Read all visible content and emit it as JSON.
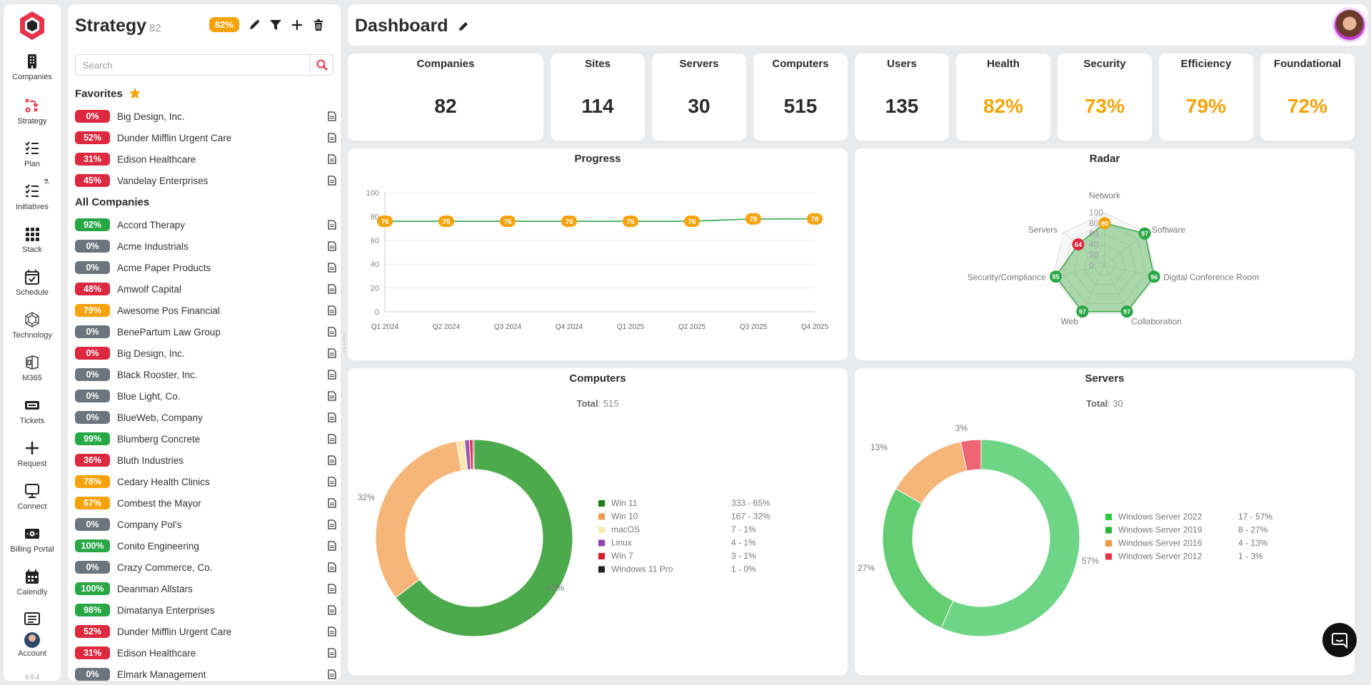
{
  "nav": {
    "items": [
      {
        "label": "Companies",
        "icon": "building-icon"
      },
      {
        "label": "Strategy",
        "icon": "strategy-icon"
      },
      {
        "label": "Plan",
        "icon": "checklist-icon"
      },
      {
        "label": "Initiatives",
        "icon": "initiatives-icon"
      },
      {
        "label": "Stack",
        "icon": "grid-icon"
      },
      {
        "label": "Schedule",
        "icon": "calendar-check-icon"
      },
      {
        "label": "Technology",
        "icon": "cubes-icon"
      },
      {
        "label": "M365",
        "icon": "office-icon"
      },
      {
        "label": "Tickets",
        "icon": "ticket-icon"
      },
      {
        "label": "Request",
        "icon": "plus-icon"
      },
      {
        "label": "Connect",
        "icon": "monitor-icon"
      },
      {
        "label": "Billing Portal",
        "icon": "money-icon"
      },
      {
        "label": "Calendly",
        "icon": "calendar-icon"
      },
      {
        "label": "Account",
        "icon": "user-avatar-icon"
      }
    ],
    "version": "9.6.4",
    "active_color": "#e8334a"
  },
  "strategy_panel": {
    "title": "Strategy",
    "count": "82",
    "overall_pct": "82%",
    "search_placeholder": "Search",
    "favorites_heading": "Favorites",
    "all_heading": "All Companies",
    "favorites": [
      {
        "pct": "0%",
        "color": "red",
        "name": "Big Design, Inc."
      },
      {
        "pct": "52%",
        "color": "red",
        "name": "Dunder Mifflin Urgent Care"
      },
      {
        "pct": "31%",
        "color": "red",
        "name": "Edison Healthcare"
      },
      {
        "pct": "45%",
        "color": "red",
        "name": "Vandelay Enterprises"
      }
    ],
    "companies": [
      {
        "pct": "92%",
        "color": "green",
        "name": "Accord Therapy"
      },
      {
        "pct": "0%",
        "color": "gray",
        "name": "Acme Industrials"
      },
      {
        "pct": "0%",
        "color": "gray",
        "name": "Acme Paper Products"
      },
      {
        "pct": "48%",
        "color": "red",
        "name": "Amwolf Capital"
      },
      {
        "pct": "79%",
        "color": "yellow",
        "name": "Awesome Pos Financial"
      },
      {
        "pct": "0%",
        "color": "gray",
        "name": "BenePartum Law Group"
      },
      {
        "pct": "0%",
        "color": "red",
        "name": "Big Design, Inc."
      },
      {
        "pct": "0%",
        "color": "gray",
        "name": "Black Rooster, Inc."
      },
      {
        "pct": "0%",
        "color": "gray",
        "name": "Blue Light, Co."
      },
      {
        "pct": "0%",
        "color": "gray",
        "name": "BlueWeb, Company"
      },
      {
        "pct": "99%",
        "color": "green",
        "name": "Blumberg Concrete"
      },
      {
        "pct": "36%",
        "color": "red",
        "name": "Bluth Industries"
      },
      {
        "pct": "78%",
        "color": "yellow",
        "name": "Cedary Health Clinics"
      },
      {
        "pct": "67%",
        "color": "yellow",
        "name": "Combest the Mayor"
      },
      {
        "pct": "0%",
        "color": "gray",
        "name": "Company Pol's"
      },
      {
        "pct": "100%",
        "color": "green",
        "name": "Conito Engineering"
      },
      {
        "pct": "0%",
        "color": "gray",
        "name": "Crazy Commerce, Co."
      },
      {
        "pct": "100%",
        "color": "green",
        "name": "Deanman Allstars"
      },
      {
        "pct": "98%",
        "color": "green",
        "name": "Dimatanya Enterprises"
      },
      {
        "pct": "52%",
        "color": "red",
        "name": "Dunder Mifflin Urgent Care"
      },
      {
        "pct": "31%",
        "color": "red",
        "name": "Edison Healthcare"
      },
      {
        "pct": "0%",
        "color": "gray",
        "name": "Elmark Management"
      }
    ]
  },
  "dashboard": {
    "title": "Dashboard",
    "stats": [
      {
        "label": "Companies",
        "value": "82",
        "accent": false
      },
      {
        "label": "Sites",
        "value": "114",
        "accent": false
      },
      {
        "label": "Servers",
        "value": "30",
        "accent": false
      },
      {
        "label": "Computers",
        "value": "515",
        "accent": false
      },
      {
        "label": "Users",
        "value": "135",
        "accent": false
      },
      {
        "label": "Health",
        "value": "82%",
        "accent": true
      },
      {
        "label": "Security",
        "value": "73%",
        "accent": true
      },
      {
        "label": "Efficiency",
        "value": "79%",
        "accent": true
      },
      {
        "label": "Foundational",
        "value": "72%",
        "accent": true
      }
    ],
    "computers_card": {
      "title": "Computers",
      "total_label": "Total",
      "total": "515"
    },
    "servers_card": {
      "title": "Servers",
      "total_label": "Total",
      "total": "30"
    }
  },
  "chart_data": [
    {
      "type": "line",
      "title": "Progress",
      "categories": [
        "Q1 2024",
        "Q2 2024",
        "Q3 2024",
        "Q4 2024",
        "Q1 2025",
        "Q2 2025",
        "Q3 2025",
        "Q4 2025"
      ],
      "values": [
        76,
        76,
        76,
        76,
        76,
        76,
        78,
        78
      ],
      "ylim": [
        0,
        100
      ],
      "yticks": [
        0,
        20,
        40,
        60,
        80,
        100
      ],
      "line_color": "#28a745",
      "label_color": "#f5a308"
    },
    {
      "type": "radar",
      "title": "Radar",
      "axes": [
        "Network",
        "Software",
        "Digital Conference Room",
        "Collaboration",
        "Web",
        "Security/Compliance",
        "Servers"
      ],
      "values": [
        80,
        97,
        96,
        97,
        97,
        95,
        64
      ],
      "value_colors": [
        "#f5a308",
        "#28a745",
        "#28a745",
        "#28a745",
        "#28a745",
        "#28a745",
        "#dd2940"
      ],
      "ticks": [
        0,
        20,
        40,
        60,
        80,
        100
      ],
      "range": [
        0,
        100
      ]
    },
    {
      "type": "pie",
      "title": "Computers",
      "slices": [
        {
          "name": "Win 11",
          "count": 333,
          "pct_label": "65%",
          "legend_value": "333 - 65%",
          "color": "#4caa4c",
          "legend_color": "#1a7f1a"
        },
        {
          "name": "Win 10",
          "count": 167,
          "pct_label": "32%",
          "legend_value": "167 - 32%",
          "color": "#f6b67a",
          "legend_color": "#f19a4e"
        },
        {
          "name": "macOS",
          "count": 7,
          "pct_label": "",
          "legend_value": "7 - 1%",
          "color": "#fde9b0",
          "legend_color": "#fde9b0"
        },
        {
          "name": "Linux",
          "count": 4,
          "pct_label": "",
          "legend_value": "4 - 1%",
          "color": "#9b59b6",
          "legend_color": "#8e44ad"
        },
        {
          "name": "Win 7",
          "count": 3,
          "pct_label": "",
          "legend_value": "3 - 1%",
          "color": "#e03a52",
          "legend_color": "#d0212f"
        },
        {
          "name": "Windows 11 Pro",
          "count": 1,
          "pct_label": "",
          "legend_value": "1 - 0%",
          "color": "#222222",
          "legend_color": "#222222"
        }
      ]
    },
    {
      "type": "pie",
      "title": "Servers",
      "slices": [
        {
          "name": "Windows Server 2022",
          "count": 17,
          "pct_label": "57%",
          "legend_value": "17 - 57%",
          "color": "#6dd585",
          "legend_color": "#2ecc40"
        },
        {
          "name": "Windows Server 2019",
          "count": 8,
          "pct_label": "27%",
          "legend_value": "8 - 27%",
          "color": "#63cd72",
          "legend_color": "#26b534"
        },
        {
          "name": "Windows Server 2016",
          "count": 4,
          "pct_label": "13%",
          "legend_value": "4 - 13%",
          "color": "#f6b67a",
          "legend_color": "#f39a3f"
        },
        {
          "name": "Windows Server 2012",
          "count": 1,
          "pct_label": "3%",
          "legend_value": "1 - 3%",
          "color": "#ee6676",
          "legend_color": "#e23346"
        }
      ]
    }
  ]
}
